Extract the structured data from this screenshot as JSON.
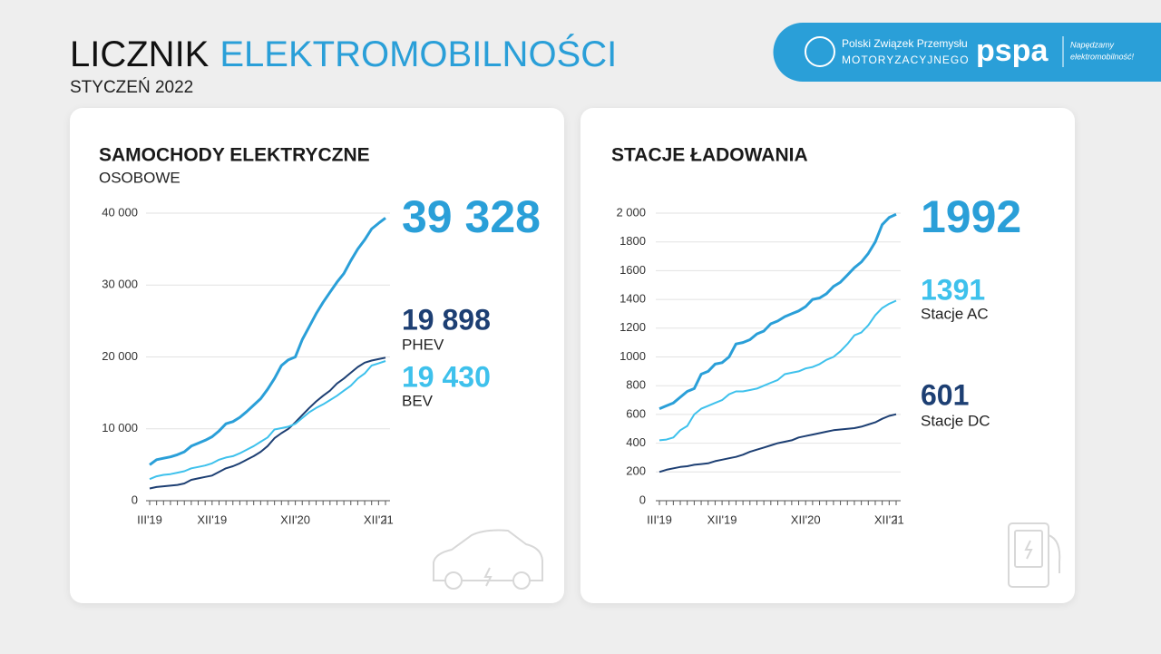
{
  "header": {
    "title_black": "LICZNIK",
    "title_blue": "ELEKTROMOBILNOŚCI",
    "subtitle": "STYCZEŃ 2022",
    "logo_pzpm_1": "Polski Związek Przemysłu",
    "logo_pzpm_2": "MOTORYZACYJNEGO",
    "logo_pspa": "pspa",
    "logo_pspa_tag_1": "Napędzamy",
    "logo_pspa_tag_2": "elektromobilność!"
  },
  "chart_data": [
    {
      "type": "line",
      "title": "SAMOCHODY ELEKTRYCZNE",
      "subtitle": "OSOBOWE",
      "categories": [
        "III'19",
        null,
        null,
        null,
        null,
        null,
        null,
        null,
        null,
        "XII'19",
        null,
        null,
        null,
        null,
        null,
        null,
        null,
        null,
        null,
        null,
        null,
        "XII'20",
        null,
        null,
        null,
        null,
        null,
        null,
        null,
        null,
        null,
        null,
        null,
        "XII'21",
        "I"
      ],
      "ylim": [
        0,
        40000
      ],
      "yticks": [
        0,
        {
          "value": 10000,
          "label": "10 000"
        },
        {
          "value": 20000,
          "label": "20 000"
        },
        {
          "value": 30000,
          "label": "30 000"
        },
        {
          "value": 40000,
          "label": "40 000"
        }
      ],
      "grid": true,
      "series": [
        {
          "color": "#2a9fd8",
          "values": [
            5000,
            5700,
            5900,
            6100,
            6400,
            6800,
            7600,
            8000,
            8400,
            8900,
            9700,
            10700,
            11000,
            11600,
            12400,
            13300,
            14200,
            15500,
            17000,
            18800,
            19600,
            20000,
            22400,
            24200,
            26000,
            27600,
            29000,
            30400,
            31600,
            33400,
            35000,
            36300,
            37800,
            38600,
            39328
          ],
          "value_labels": [
            null,
            null,
            null,
            null,
            null,
            null,
            null,
            null,
            null,
            null,
            null,
            null,
            null,
            null,
            null,
            null,
            null,
            null,
            null,
            null,
            null,
            null,
            null,
            null,
            null,
            null,
            null,
            null,
            null,
            null,
            null,
            null,
            null,
            null,
            "39 328"
          ]
        },
        {
          "name": "PHEV",
          "color": "#1d3f73",
          "values": [
            1700,
            1900,
            2000,
            2100,
            2200,
            2400,
            2900,
            3100,
            3300,
            3500,
            4000,
            4500,
            4800,
            5200,
            5700,
            6200,
            6800,
            7600,
            8700,
            9400,
            10000,
            10900,
            11900,
            12900,
            13800,
            14600,
            15300,
            16300,
            17000,
            17800,
            18600,
            19200,
            19500,
            19700,
            19898
          ],
          "value_labels": [
            null,
            null,
            null,
            null,
            null,
            null,
            null,
            null,
            null,
            null,
            null,
            null,
            null,
            null,
            null,
            null,
            null,
            null,
            null,
            null,
            null,
            null,
            null,
            null,
            null,
            null,
            null,
            null,
            null,
            null,
            null,
            null,
            null,
            null,
            "19 898"
          ]
        },
        {
          "name": "BEV",
          "color": "#3ec1ec",
          "values": [
            3000,
            3400,
            3600,
            3700,
            3900,
            4100,
            4500,
            4700,
            4900,
            5200,
            5700,
            6000,
            6200,
            6600,
            7100,
            7600,
            8200,
            8800,
            9900,
            10100,
            10300,
            10700,
            11500,
            12300,
            12900,
            13400,
            14000,
            14600,
            15300,
            16000,
            17000,
            17700,
            18800,
            19100,
            19430
          ],
          "value_labels": [
            null,
            null,
            null,
            null,
            null,
            null,
            null,
            null,
            null,
            null,
            null,
            null,
            null,
            null,
            null,
            null,
            null,
            null,
            null,
            null,
            null,
            null,
            null,
            null,
            null,
            null,
            null,
            null,
            null,
            null,
            null,
            null,
            null,
            null,
            "19 430"
          ]
        }
      ]
    },
    {
      "type": "line",
      "title": "STACJE ŁADOWANIA",
      "categories": [
        "III'19",
        null,
        null,
        null,
        null,
        null,
        null,
        null,
        null,
        "XII'19",
        null,
        null,
        null,
        null,
        null,
        null,
        null,
        null,
        null,
        null,
        null,
        "XII'20",
        null,
        null,
        null,
        null,
        null,
        null,
        null,
        null,
        null,
        null,
        null,
        "XII'21",
        "I"
      ],
      "ylim": [
        0,
        2000
      ],
      "yticks": [
        0,
        200,
        400,
        600,
        800,
        1000,
        1200,
        1400,
        1600,
        1800,
        {
          "value": 2000,
          "label": "2 000"
        }
      ],
      "grid": true,
      "series": [
        {
          "color": "#2a9fd8",
          "values": [
            640,
            660,
            680,
            720,
            760,
            780,
            880,
            900,
            950,
            960,
            1000,
            1090,
            1100,
            1120,
            1160,
            1180,
            1230,
            1250,
            1280,
            1300,
            1320,
            1350,
            1400,
            1410,
            1440,
            1490,
            1520,
            1570,
            1620,
            1660,
            1720,
            1800,
            1920,
            1970,
            1992
          ]
        },
        {
          "name": "Stacje AC",
          "color": "#3ec1ec",
          "values": [
            420,
            425,
            440,
            490,
            520,
            600,
            640,
            660,
            680,
            700,
            740,
            760,
            760,
            770,
            780,
            800,
            820,
            840,
            880,
            890,
            900,
            920,
            930,
            950,
            980,
            1000,
            1040,
            1090,
            1150,
            1170,
            1220,
            1290,
            1340,
            1370,
            1391
          ]
        },
        {
          "name": "Stacje DC",
          "color": "#1d3f73",
          "values": [
            200,
            215,
            225,
            235,
            240,
            250,
            255,
            260,
            275,
            285,
            295,
            305,
            320,
            340,
            355,
            370,
            385,
            400,
            410,
            420,
            440,
            450,
            460,
            470,
            480,
            490,
            495,
            500,
            505,
            515,
            530,
            545,
            570,
            590,
            601
          ]
        }
      ]
    }
  ]
}
